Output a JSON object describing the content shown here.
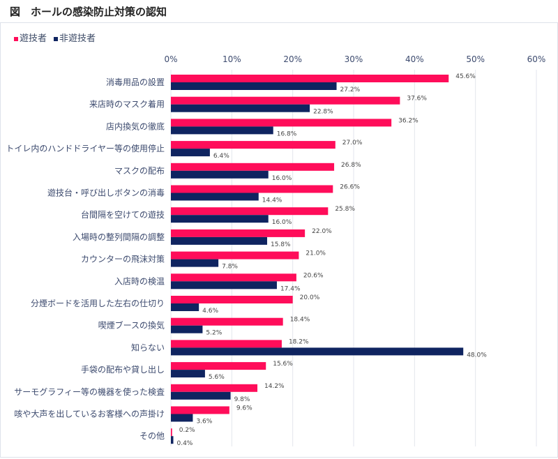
{
  "title": "図　ホールの感染防止対策の認知",
  "chart_data": {
    "type": "bar",
    "orientation": "horizontal",
    "xlim": [
      0,
      60
    ],
    "tick_labels": [
      "0%",
      "10%",
      "20%",
      "30%",
      "40%",
      "50%",
      "60%"
    ],
    "grid": true,
    "legend_position": "top-left",
    "categories": [
      "消毒用品の設置",
      "来店時のマスク着用",
      "店内換気の徹底",
      "トイレ内のハンドドライヤー等の使用停止",
      "マスクの配布",
      "遊技台・呼び出しボタンの消毒",
      "台間隔を空けての遊技",
      "入場時の整列間隔の調整",
      "カウンターの飛沫対策",
      "入店時の検温",
      "分煙ボードを活用した左右の仕切り",
      "喫煙ブースの換気",
      "知らない",
      "手袋の配布や貸し出し",
      "サーモグラフィー等の機器を使った検査",
      "咳や大声を出しているお客様への声掛け",
      "その他"
    ],
    "series": [
      {
        "name": "遊技者",
        "color": "#ff0d5a",
        "values": [
          45.6,
          37.6,
          36.2,
          27.0,
          26.8,
          26.6,
          25.8,
          22.0,
          21.0,
          20.6,
          20.0,
          18.4,
          18.2,
          15.6,
          14.2,
          9.6,
          0.2
        ]
      },
      {
        "name": "非遊技者",
        "color": "#0f2460",
        "values": [
          27.2,
          22.8,
          16.8,
          6.4,
          16.0,
          14.4,
          16.0,
          15.8,
          7.8,
          17.4,
          4.6,
          5.2,
          48.0,
          5.6,
          9.8,
          3.6,
          0.4
        ]
      }
    ]
  }
}
